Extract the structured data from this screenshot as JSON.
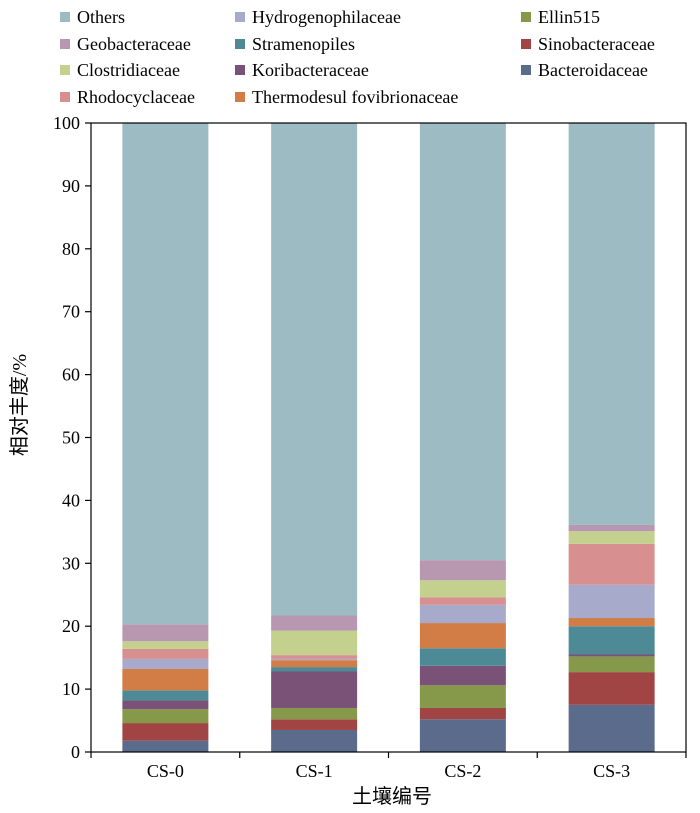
{
  "chart_data": {
    "type": "bar",
    "stacked": true,
    "xlabel": "土壤编号",
    "ylabel": "相对丰度/%",
    "ylim": [
      0,
      100
    ],
    "yticks": [
      0,
      10,
      20,
      30,
      40,
      50,
      60,
      70,
      80,
      90,
      100
    ],
    "grid": false,
    "legend_position": "top",
    "categories": [
      "CS-0",
      "CS-1",
      "CS-2",
      "CS-3"
    ],
    "series": [
      {
        "name": "Bacteroidaceae",
        "color": "#5a6b8c",
        "values": [
          1.8,
          3.5,
          5.2,
          7.5
        ]
      },
      {
        "name": "Sinobacteraceae",
        "color": "#a04544",
        "values": [
          2.8,
          1.7,
          1.8,
          5.2
        ]
      },
      {
        "name": "Ellin515",
        "color": "#86984a",
        "values": [
          2.2,
          1.8,
          3.6,
          2.5
        ]
      },
      {
        "name": "Koribacteraceae",
        "color": "#7b5277",
        "values": [
          1.4,
          5.8,
          3.1,
          0.3
        ]
      },
      {
        "name": "Stramenopiles",
        "color": "#4e8a96",
        "values": [
          1.6,
          0.7,
          2.8,
          4.5
        ]
      },
      {
        "name": "Thermodesul fovibrionaceae",
        "color": "#d27d46",
        "values": [
          3.4,
          1.1,
          4.0,
          1.3
        ]
      },
      {
        "name": "Hydrogenophilaceae",
        "color": "#a8aacc",
        "values": [
          1.6,
          0.2,
          2.9,
          5.3
        ]
      },
      {
        "name": "Rhodocyclaceae",
        "color": "#d78f8f",
        "values": [
          1.6,
          0.6,
          1.2,
          6.5
        ]
      },
      {
        "name": "Clostridiaceae",
        "color": "#c4d08e",
        "values": [
          1.2,
          3.9,
          2.7,
          2.0
        ]
      },
      {
        "name": "Geobacteraceae",
        "color": "#b898b0",
        "values": [
          2.7,
          2.4,
          3.2,
          1.0
        ]
      },
      {
        "name": "Others",
        "color": "#9dbbc3",
        "values": [
          79.7,
          78.3,
          69.5,
          63.9
        ]
      }
    ],
    "legend_order": [
      "Others",
      "Hydrogenophilaceae",
      "Ellin515",
      "Geobacteraceae",
      "Stramenopiles",
      "Sinobacteraceae",
      "Clostridiaceae",
      "Koribacteraceae",
      "Bacteroidaceae",
      "Rhodocyclaceae",
      "Thermodesul fovibrionaceae"
    ]
  }
}
